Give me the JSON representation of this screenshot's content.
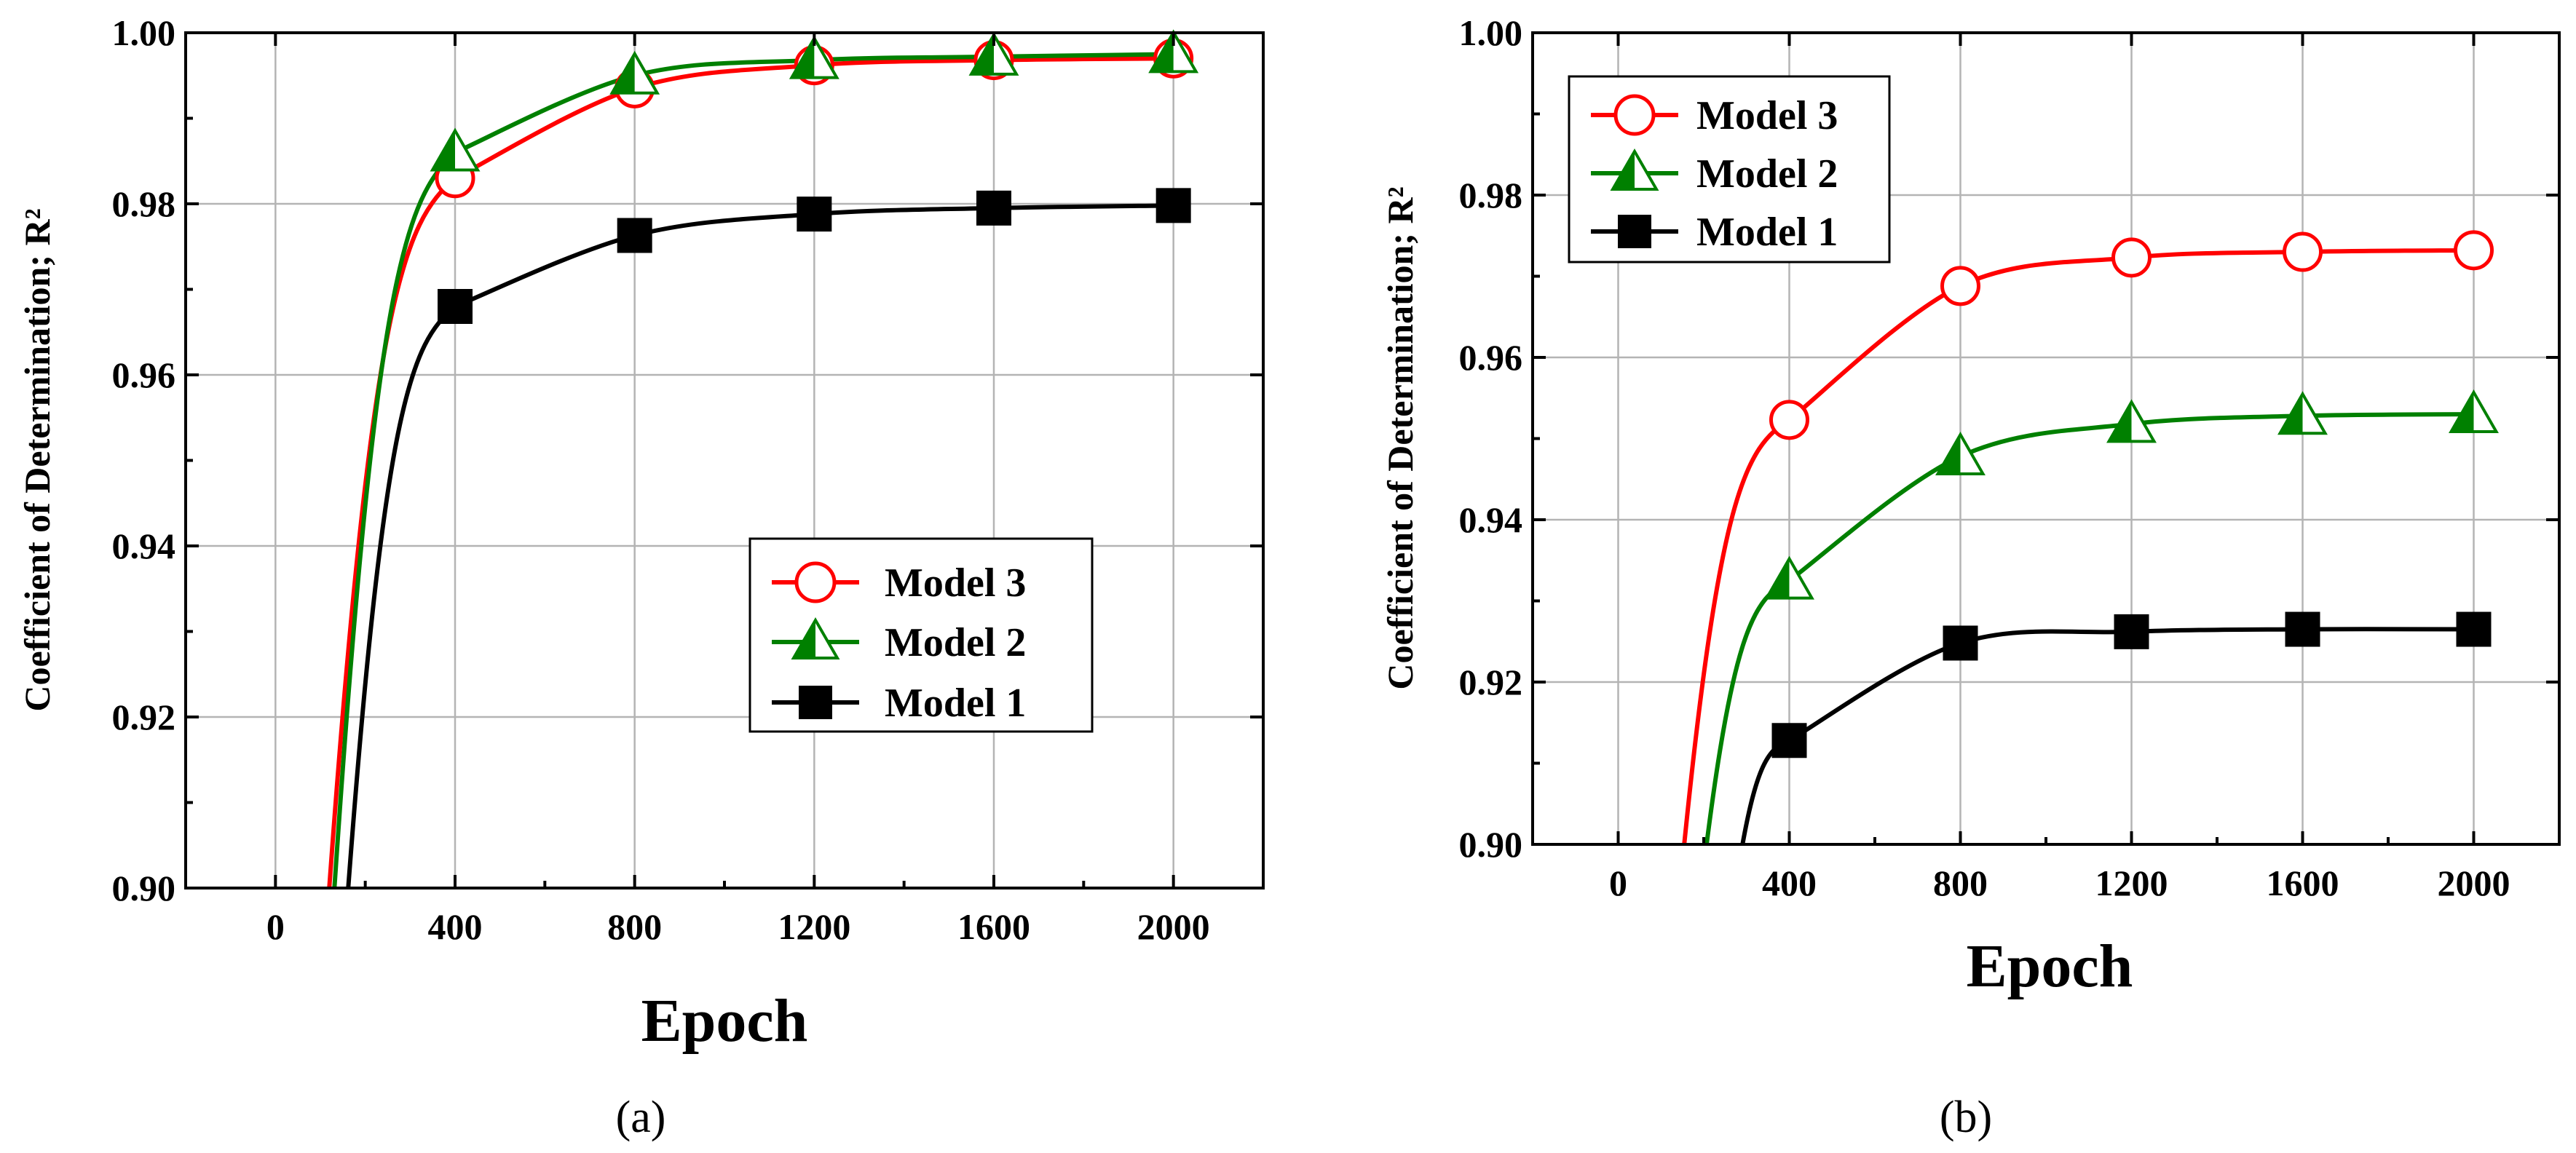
{
  "chart_data": [
    {
      "panel": "(a)",
      "type": "line",
      "xlabel": "Epoch",
      "ylabel": "Coefficient of Determination; R²",
      "xlim": [
        -200,
        2200
      ],
      "ylim": [
        0.9,
        1.0
      ],
      "xticks": [
        0,
        400,
        800,
        1200,
        1600,
        2000
      ],
      "xtick_labels": [
        "0",
        "400",
        "800",
        "1200",
        "1600",
        "2000"
      ],
      "yticks": [
        0.9,
        0.92,
        0.94,
        0.96,
        0.98,
        1.0
      ],
      "ytick_labels": [
        "0.90",
        "0.92",
        "0.94",
        "0.96",
        "0.98",
        "1.00"
      ],
      "grid": true,
      "legend_position": "lower-right",
      "series": [
        {
          "name": "Model 3",
          "color": "#ff0000",
          "marker": "open-circle",
          "x": [
            400,
            800,
            1200,
            1600,
            2000
          ],
          "values": [
            0.983,
            0.9935,
            0.9962,
            0.9968,
            0.997
          ],
          "curve_start_x": 113
        },
        {
          "name": "Model 2",
          "color": "#008000",
          "marker": "half-filled-triangle",
          "x": [
            400,
            800,
            1200,
            1600,
            2000
          ],
          "values": [
            0.986,
            0.995,
            0.9968,
            0.9972,
            0.9975
          ],
          "curve_start_x": 125
        },
        {
          "name": "Model 1",
          "color": "#000000",
          "marker": "filled-square",
          "x": [
            400,
            800,
            1200,
            1600,
            2000
          ],
          "values": [
            0.968,
            0.9763,
            0.9788,
            0.9795,
            0.9798
          ],
          "curve_start_x": 155
        }
      ]
    },
    {
      "panel": "(b)",
      "type": "line",
      "xlabel": "Epoch",
      "ylabel": "Coefficient of Determination; R²",
      "xlim": [
        -200,
        2200
      ],
      "ylim": [
        0.9,
        1.0
      ],
      "xticks": [
        0,
        400,
        800,
        1200,
        1600,
        2000
      ],
      "xtick_labels": [
        "0",
        "400",
        "800",
        "1200",
        "1600",
        "2000"
      ],
      "yticks": [
        0.9,
        0.92,
        0.94,
        0.96,
        0.98,
        1.0
      ],
      "ytick_labels": [
        "0.90",
        "0.92",
        "0.94",
        "0.96",
        "0.98",
        "1.00"
      ],
      "grid": true,
      "legend_position": "top-left",
      "series": [
        {
          "name": "Model 3",
          "color": "#ff0000",
          "marker": "open-circle",
          "x": [
            400,
            800,
            1200,
            1600,
            2000
          ],
          "values": [
            0.9523,
            0.9688,
            0.9723,
            0.973,
            0.9732
          ],
          "curve_start_x": 145
        },
        {
          "name": "Model 2",
          "color": "#008000",
          "marker": "half-filled-triangle",
          "x": [
            400,
            800,
            1200,
            1600,
            2000
          ],
          "values": [
            0.9325,
            0.9478,
            0.9518,
            0.9528,
            0.953
          ],
          "curve_start_x": 195
        },
        {
          "name": "Model 1",
          "color": "#000000",
          "marker": "filled-square",
          "x": [
            400,
            800,
            1200,
            1600,
            2000
          ],
          "values": [
            0.9128,
            0.9248,
            0.9262,
            0.9265,
            0.9265
          ],
          "curve_start_x": 275
        }
      ]
    }
  ]
}
